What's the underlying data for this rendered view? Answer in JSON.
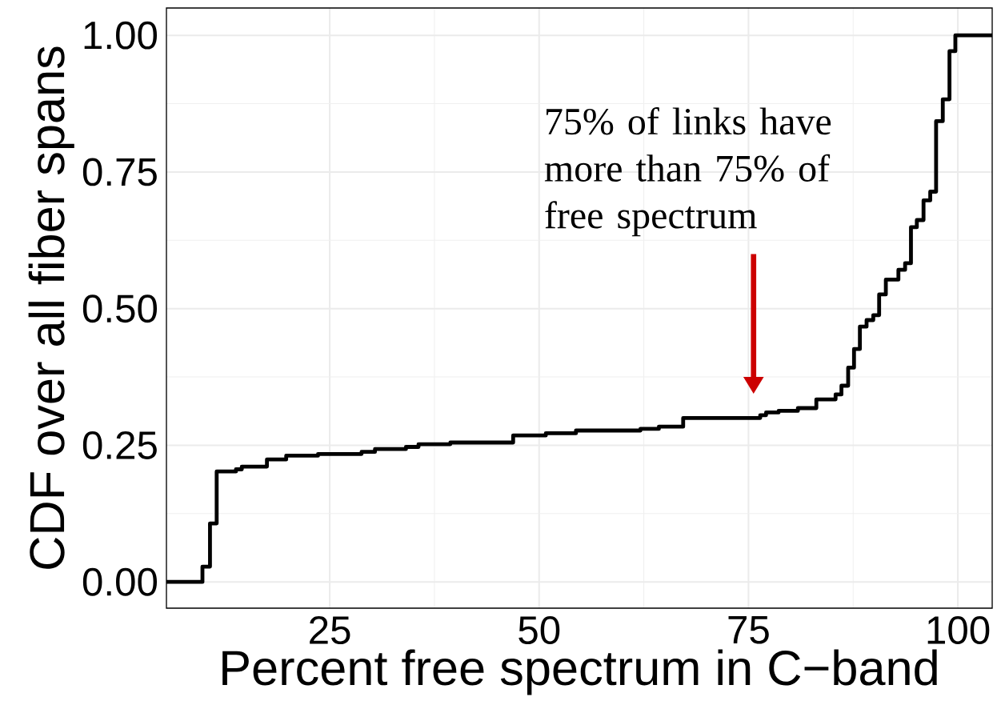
{
  "chart_data": {
    "type": "step",
    "xlabel": "Percent free spectrum in C−band",
    "ylabel": "CDF over all fiber spans",
    "series": [
      {
        "color": "#000000",
        "x": [
          5.5,
          9.8,
          10.7,
          11.5,
          13.8,
          14.5,
          17.5,
          19.8,
          23.6,
          28.8,
          30.4,
          34.1,
          35.6,
          39.4,
          46.9,
          50.8,
          54.4,
          62.1,
          64.3,
          67.2,
          76.4,
          77.1,
          78.6,
          80.9,
          83.1,
          85.4,
          86.1,
          86.9,
          87.6,
          88.3,
          89.1,
          89.9,
          90.6,
          91.4,
          92.9,
          93.7,
          94.4,
          95.1,
          95.9,
          96.7,
          97.4,
          98.2,
          99.0,
          99.7,
          104.1
        ],
        "values": [
          0.0,
          0.028,
          0.107,
          0.202,
          0.206,
          0.211,
          0.224,
          0.231,
          0.234,
          0.238,
          0.243,
          0.247,
          0.252,
          0.255,
          0.268,
          0.272,
          0.277,
          0.28,
          0.284,
          0.3,
          0.305,
          0.31,
          0.313,
          0.318,
          0.334,
          0.343,
          0.359,
          0.392,
          0.426,
          0.467,
          0.479,
          0.488,
          0.526,
          0.553,
          0.571,
          0.583,
          0.649,
          0.662,
          0.698,
          0.714,
          0.843,
          0.883,
          0.971,
          1.0,
          1.0
        ]
      }
    ],
    "xlim": [
      5.5,
      104.1
    ],
    "ylim": [
      -0.048,
      1.05
    ],
    "xticks": [
      25,
      50,
      75,
      100
    ],
    "yticks": [
      {
        "value": 0,
        "label": "0.00"
      },
      {
        "value": 0.25,
        "label": "0.25"
      },
      {
        "value": 0.5,
        "label": "0.50"
      },
      {
        "value": 0.75,
        "label": "0.75"
      },
      {
        "value": 1,
        "label": "1.00"
      }
    ],
    "grid": true,
    "marker": "none",
    "line_style": "solid",
    "annotations": [
      "75% of links have more than 75% of free spectrum"
    ]
  }
}
